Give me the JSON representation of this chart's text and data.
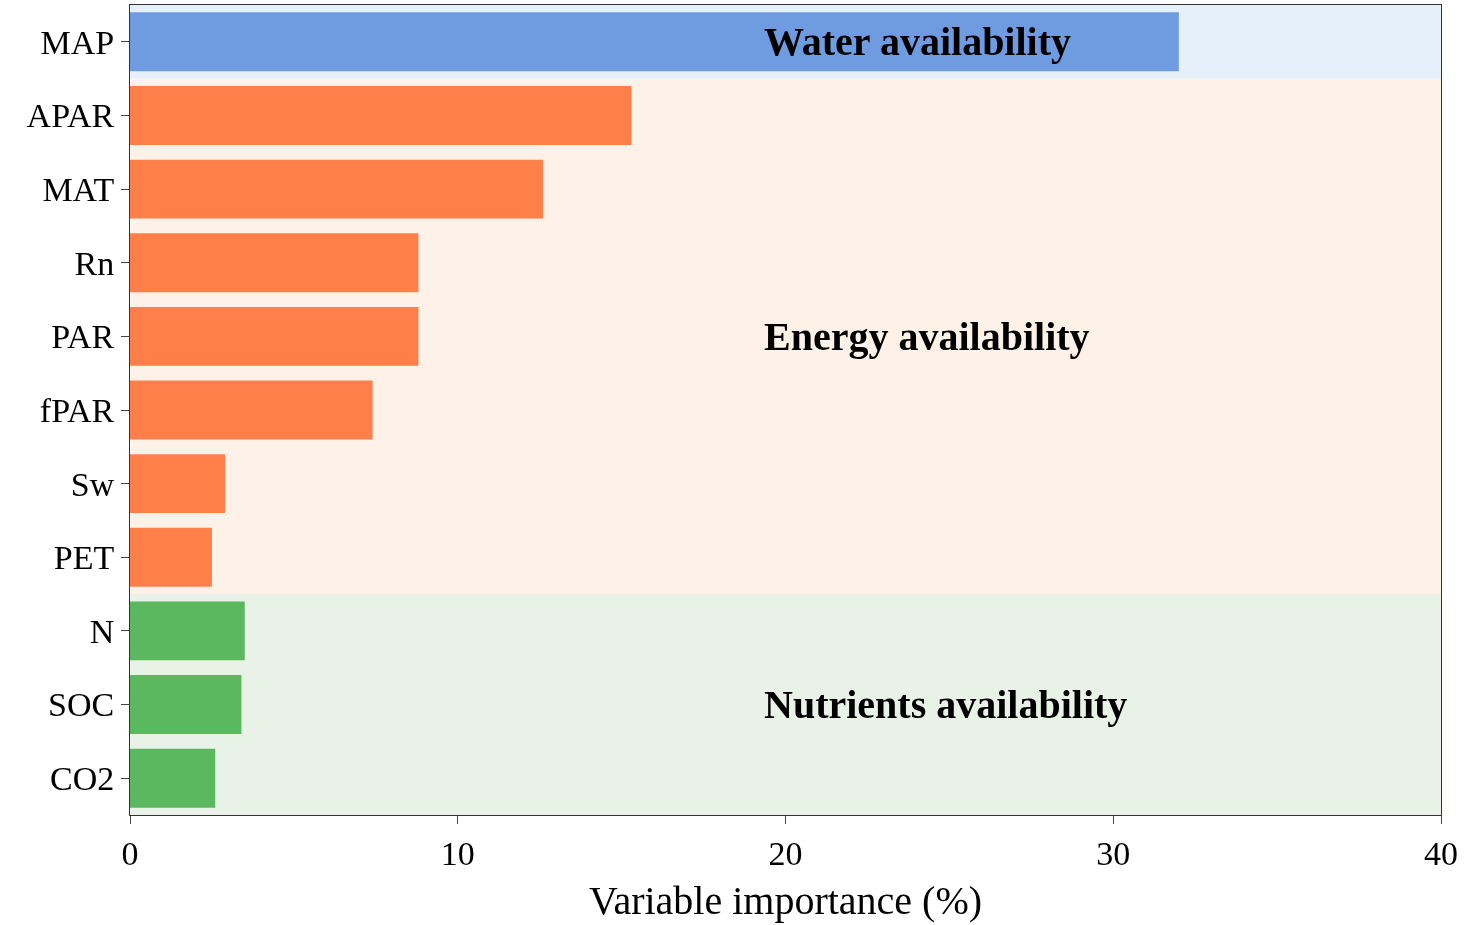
{
  "chart_data": {
    "type": "bar",
    "orientation": "horizontal",
    "xlabel": "Variable importance (%)",
    "categories": [
      "MAP",
      "APAR",
      "MAT",
      "Rn",
      "PAR",
      "fPAR",
      "Sw",
      "PET",
      "N",
      "SOC",
      "CO2"
    ],
    "values": [
      32.0,
      15.3,
      12.6,
      8.8,
      8.8,
      7.4,
      2.9,
      2.5,
      3.5,
      3.4,
      2.6
    ],
    "colors": [
      "#6f9be0",
      "#ff7f4a",
      "#ff7f4a",
      "#ff7f4a",
      "#ff7f4a",
      "#ff7f4a",
      "#ff7f4a",
      "#ff7f4a",
      "#5cb85f",
      "#5cb85f",
      "#5cb85f"
    ],
    "xlim": [
      0,
      40
    ],
    "xticks": [
      0,
      10,
      20,
      30,
      40
    ],
    "grid": false,
    "bands": [
      {
        "axis": "y",
        "from": "MAP",
        "to": "MAP",
        "label": "Water availability",
        "color": "#e6f0fb"
      },
      {
        "axis": "y",
        "from": "APAR",
        "to": "PET",
        "label": "Energy availability",
        "color": "#fdf1e8"
      },
      {
        "axis": "y",
        "from": "N",
        "to": "CO2",
        "label": "Nutrients availability",
        "color": "#e8f2e6"
      }
    ]
  }
}
